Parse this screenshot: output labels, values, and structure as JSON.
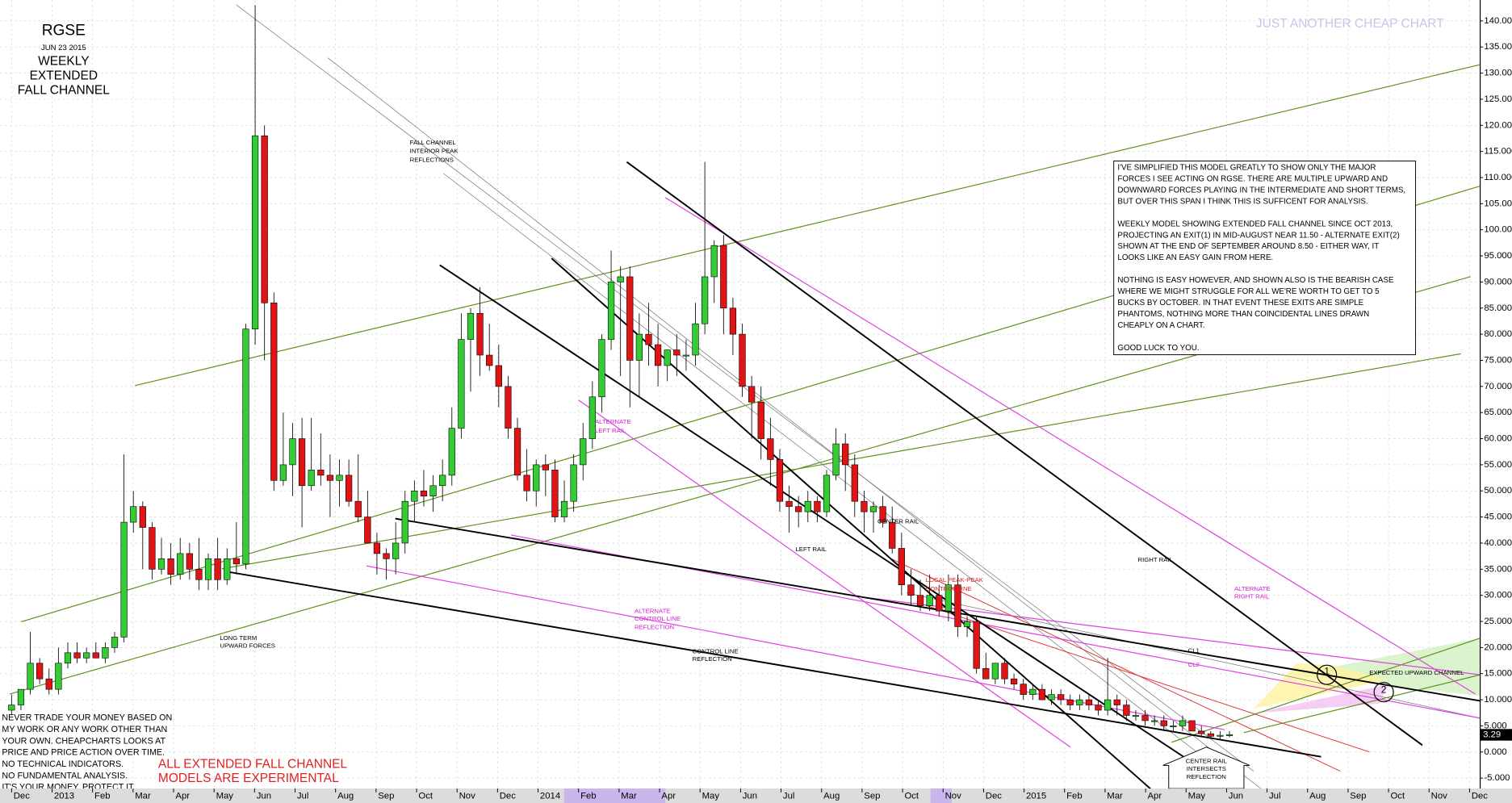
{
  "chart_data": {
    "type": "candlestick",
    "title": "RGSE",
    "subtitle": "JUN 23 2015",
    "heading": [
      "WEEKLY",
      "EXTENDED",
      "FALL CHANNEL"
    ],
    "watermark": "JUST ANOTHER CHEAP CHART",
    "up_color": "#33cc33",
    "down_color": "#e01414",
    "grid": true,
    "ylim": [
      -7,
      144
    ],
    "yticks": [
      {
        "value": -5,
        "label": "-5.000"
      },
      {
        "value": 0,
        "label": "0.000"
      },
      {
        "value": 5,
        "label": "5.000"
      },
      {
        "value": 10,
        "label": "10.000"
      },
      {
        "value": 15,
        "label": "15.000"
      },
      {
        "value": 20,
        "label": "20.000"
      },
      {
        "value": 25,
        "label": "25.000"
      },
      {
        "value": 30,
        "label": "30.000"
      },
      {
        "value": 35,
        "label": "35.000"
      },
      {
        "value": 40,
        "label": "40.000"
      },
      {
        "value": 45,
        "label": "45.000"
      },
      {
        "value": 50,
        "label": "50.000"
      },
      {
        "value": 55,
        "label": "55.000"
      },
      {
        "value": 60,
        "label": "60.000"
      },
      {
        "value": 65,
        "label": "65.000"
      },
      {
        "value": 70,
        "label": "70.000"
      },
      {
        "value": 75,
        "label": "75.000"
      },
      {
        "value": 80,
        "label": "80.000"
      },
      {
        "value": 85,
        "label": "85.000"
      },
      {
        "value": 90,
        "label": "90.000"
      },
      {
        "value": 95,
        "label": "95.000"
      },
      {
        "value": 100,
        "label": "100.000"
      },
      {
        "value": 105,
        "label": "105.000"
      },
      {
        "value": 110,
        "label": "110.000"
      },
      {
        "value": 115,
        "label": "115.000"
      },
      {
        "value": 120,
        "label": "120.000"
      },
      {
        "value": 125,
        "label": "125.000"
      },
      {
        "value": 130,
        "label": "130.000"
      },
      {
        "value": 135,
        "label": "135.000"
      },
      {
        "value": 140,
        "label": "140.000"
      }
    ],
    "xlabels": [
      "Dec",
      "2013",
      "Feb",
      "Mar",
      "Apr",
      "May",
      "Jun",
      "Jul",
      "Aug",
      "Sep",
      "Oct",
      "Nov",
      "Dec",
      "2014",
      "Feb",
      "Mar",
      "Apr",
      "May",
      "Jun",
      "Jul",
      "Aug",
      "Sep",
      "Oct",
      "Nov",
      "Dec",
      "2015",
      "Feb",
      "Mar",
      "Apr",
      "May",
      "Jun",
      "Jul",
      "Aug",
      "Sep",
      "Oct",
      "Nov",
      "Dec"
    ],
    "last_price": 3.29,
    "candles": [
      [
        8,
        11,
        7,
        9
      ],
      [
        9,
        12,
        8,
        12
      ],
      [
        12,
        23,
        11,
        17
      ],
      [
        17,
        18,
        13,
        14
      ],
      [
        14,
        16,
        11,
        12
      ],
      [
        12,
        20,
        11,
        17
      ],
      [
        17,
        21,
        16,
        19
      ],
      [
        19,
        21,
        17,
        18
      ],
      [
        18,
        20,
        17,
        19
      ],
      [
        19,
        21,
        18,
        18
      ],
      [
        18,
        21,
        17,
        20
      ],
      [
        20,
        23,
        19,
        22
      ],
      [
        22,
        57,
        21,
        44
      ],
      [
        44,
        50,
        42,
        47
      ],
      [
        47,
        48,
        35,
        43
      ],
      [
        43,
        44,
        33,
        35
      ],
      [
        35,
        41,
        34,
        37
      ],
      [
        37,
        40,
        32,
        34
      ],
      [
        34,
        41,
        33,
        38
      ],
      [
        38,
        40,
        33,
        35
      ],
      [
        35,
        41,
        31,
        33
      ],
      [
        33,
        38,
        31,
        37
      ],
      [
        37,
        41,
        31,
        33
      ],
      [
        33,
        39,
        32,
        37
      ],
      [
        37,
        44,
        34,
        36
      ],
      [
        36,
        82,
        35,
        81
      ],
      [
        81,
        143,
        78,
        118
      ],
      [
        118,
        120,
        75,
        86
      ],
      [
        86,
        88,
        50,
        52
      ],
      [
        52,
        65,
        51,
        55
      ],
      [
        55,
        63,
        49,
        60
      ],
      [
        60,
        64,
        43,
        51
      ],
      [
        51,
        64,
        50,
        54
      ],
      [
        54,
        61,
        51,
        53
      ],
      [
        53,
        57,
        45,
        52
      ],
      [
        52,
        56,
        47,
        53
      ],
      [
        53,
        56,
        47,
        48
      ],
      [
        48,
        57,
        44,
        45
      ],
      [
        45,
        50,
        40,
        40
      ],
      [
        40,
        42,
        34,
        38
      ],
      [
        38,
        39,
        33,
        37
      ],
      [
        37,
        44,
        34,
        40
      ],
      [
        40,
        50,
        38,
        48
      ],
      [
        48,
        52,
        44,
        50
      ],
      [
        50,
        54,
        47,
        49
      ],
      [
        49,
        53,
        46,
        51
      ],
      [
        51,
        56,
        48,
        53
      ],
      [
        53,
        66,
        51,
        62
      ],
      [
        62,
        84,
        60,
        79
      ],
      [
        79,
        85,
        69,
        84
      ],
      [
        84,
        89,
        72,
        76
      ],
      [
        76,
        82,
        73,
        74
      ],
      [
        74,
        78,
        66,
        70
      ],
      [
        70,
        72,
        60,
        62
      ],
      [
        62,
        64,
        52,
        53
      ],
      [
        53,
        58,
        48,
        50
      ],
      [
        50,
        56,
        47,
        55
      ],
      [
        55,
        57,
        49,
        54
      ],
      [
        54,
        56,
        44,
        45
      ],
      [
        45,
        52,
        44,
        48
      ],
      [
        48,
        57,
        46,
        55
      ],
      [
        55,
        63,
        52,
        60
      ],
      [
        60,
        71,
        58,
        68
      ],
      [
        68,
        80,
        65,
        79
      ],
      [
        79,
        96,
        77,
        90
      ],
      [
        90,
        93,
        72,
        91
      ],
      [
        91,
        93,
        66,
        75
      ],
      [
        75,
        84,
        68,
        80
      ],
      [
        80,
        86,
        74,
        78
      ],
      [
        78,
        82,
        70,
        74
      ],
      [
        74,
        77,
        71,
        77
      ],
      [
        77,
        80,
        72,
        76
      ],
      [
        76,
        79,
        73,
        76
      ],
      [
        76,
        86,
        74,
        82
      ],
      [
        82,
        113,
        80,
        91
      ],
      [
        91,
        98,
        86,
        97
      ],
      [
        97,
        99,
        80,
        85
      ],
      [
        85,
        87,
        76,
        80
      ],
      [
        80,
        82,
        68,
        70
      ],
      [
        70,
        72,
        60,
        67
      ],
      [
        67,
        70,
        56,
        60
      ],
      [
        60,
        64,
        51,
        56
      ],
      [
        56,
        58,
        46,
        48
      ],
      [
        48,
        51,
        42,
        47
      ],
      [
        47,
        49,
        43,
        46
      ],
      [
        46,
        50,
        44,
        48
      ],
      [
        48,
        49,
        44,
        46
      ],
      [
        46,
        54,
        45,
        53
      ],
      [
        53,
        62,
        52,
        59
      ],
      [
        59,
        61,
        50,
        55
      ],
      [
        55,
        57,
        45,
        48
      ],
      [
        48,
        50,
        42,
        46
      ],
      [
        46,
        48,
        42,
        47
      ],
      [
        47,
        49,
        43,
        44
      ],
      [
        44,
        47,
        38,
        39
      ],
      [
        39,
        42,
        30,
        32
      ],
      [
        32,
        35,
        28,
        30
      ],
      [
        30,
        33,
        27,
        28
      ],
      [
        28,
        34,
        27,
        30
      ],
      [
        30,
        32,
        26,
        27
      ],
      [
        27,
        34,
        25,
        32
      ],
      [
        32,
        34,
        22,
        24
      ],
      [
        24,
        26,
        22,
        25
      ],
      [
        25,
        26,
        15,
        16
      ],
      [
        16,
        19,
        14,
        14
      ],
      [
        14,
        17,
        13,
        17
      ],
      [
        17,
        18,
        13,
        14
      ],
      [
        14,
        15,
        12,
        13
      ],
      [
        13,
        14,
        10,
        11
      ],
      [
        11,
        13,
        10,
        12
      ],
      [
        12,
        13,
        10,
        10
      ],
      [
        10,
        12,
        9,
        11
      ],
      [
        11,
        12,
        9,
        10
      ],
      [
        10,
        11,
        8,
        9
      ],
      [
        9,
        11,
        8,
        10
      ],
      [
        10,
        11,
        8,
        9
      ],
      [
        9,
        10,
        7,
        8
      ],
      [
        8,
        18,
        7,
        10
      ],
      [
        10,
        11,
        7,
        9
      ],
      [
        9,
        10,
        6,
        7
      ],
      [
        7,
        8,
        6,
        7
      ],
      [
        7,
        8,
        5,
        6
      ],
      [
        6,
        7,
        5,
        6
      ],
      [
        6,
        7,
        4,
        5
      ],
      [
        5,
        6,
        4,
        5
      ],
      [
        5,
        7,
        4,
        6
      ],
      [
        6,
        6,
        4,
        4
      ],
      [
        4,
        5,
        3,
        3.5
      ],
      [
        3.5,
        4,
        2.5,
        3
      ],
      [
        3,
        4,
        2.5,
        3.2
      ],
      [
        3.2,
        4,
        2.8,
        3.3
      ]
    ],
    "note_box": [
      [
        "I'VE SIMPLIFIED THIS MODEL GREATLY TO SHOW ONLY THE MAJOR",
        "FORCES I SEE ACTING ON RGSE. THERE ARE MULTIPLE UPWARD AND",
        "DOWNWARD FORCES PLAYING IN THE INTERMEDIATE AND SHORT TERMS,",
        "BUT OVER THIS SPAN I THINK THIS IS SUFFICENT FOR ANALYSIS."
      ],
      [
        "WEEKLY MODEL SHOWING EXTENDED FALL CHANNEL SINCE OCT 2013,",
        "PROJECTING AN EXIT(1) IN  MID-AUGUST NEAR 11.50 - ALTERNATE EXIT(2)",
        "SHOWN AT THE END OF SEPTEMBER AROUND 8.50 - EITHER WAY, IT",
        "LOOKS LIKE AN EASY GAIN FROM HERE."
      ],
      [
        "NOTHING IS EASY HOWEVER, AND SHOWN ALSO IS THE BEARISH CASE",
        "WHERE WE MIGHT STRUGGLE FOR ALL WE'RE WORTH TO GET TO 5",
        "BUCKS BY OCTOBER. IN THAT EVENT THESE EXITS ARE SIMPLE",
        "PHANTOMS, NOTHING MORE THAN COINCIDENTAL LINES DRAWN",
        "CHEAPLY ON A CHART."
      ],
      [
        "GOOD LUCK TO YOU."
      ]
    ],
    "disclaimer": [
      "NEVER TRADE YOUR MONEY BASED ON",
      "MY WORK OR ANY WORK OTHER THAN",
      "YOUR OWN. CHEAPCHARTS LOOKS AT",
      "PRICE AND PRICE ACTION OVER TIME.",
      "NO TECHNICAL INDICATORS.",
      "NO FUNDAMENTAL ANALYSIS.",
      "IT'S YOUR MONEY. PROTECT IT."
    ],
    "warning": [
      "ALL EXTENDED FALL CHANNEL",
      "MODELS ARE EXPERIMENTAL"
    ],
    "annotations": {
      "interior": [
        "FALL CHANNEL",
        "INTERIOR PEAK",
        "REFLECTIONS"
      ],
      "alt_left": [
        "ALTERNATE",
        "LEFT RAIL"
      ],
      "center_rail": "CENTER RAIL",
      "left_rail": "LEFT RAIL",
      "right_rail": "RIGHT RAIL",
      "alt_right": [
        "ALTERNATE",
        "RIGHT RAIL"
      ],
      "local_peak": [
        "LOCAL PEAK-PEAK",
        "CONTROL LINE"
      ],
      "alt_control": [
        "ALTERNATE",
        "CONTROL LINE",
        "REFLECTION"
      ],
      "long_term": [
        "LONG TERM",
        "UPWARD FORCES"
      ],
      "control_reflection": [
        "CONTROL LINE",
        "REFLECTION"
      ],
      "cl1": "CL1",
      "cl2": "CL2",
      "expected": "EXPECTED UPWARD CHANNEL",
      "intersects": [
        "CENTER RAIL",
        "INTERSECTS",
        "REFLECTION"
      ],
      "exit1": "1",
      "exit2": "2"
    }
  }
}
